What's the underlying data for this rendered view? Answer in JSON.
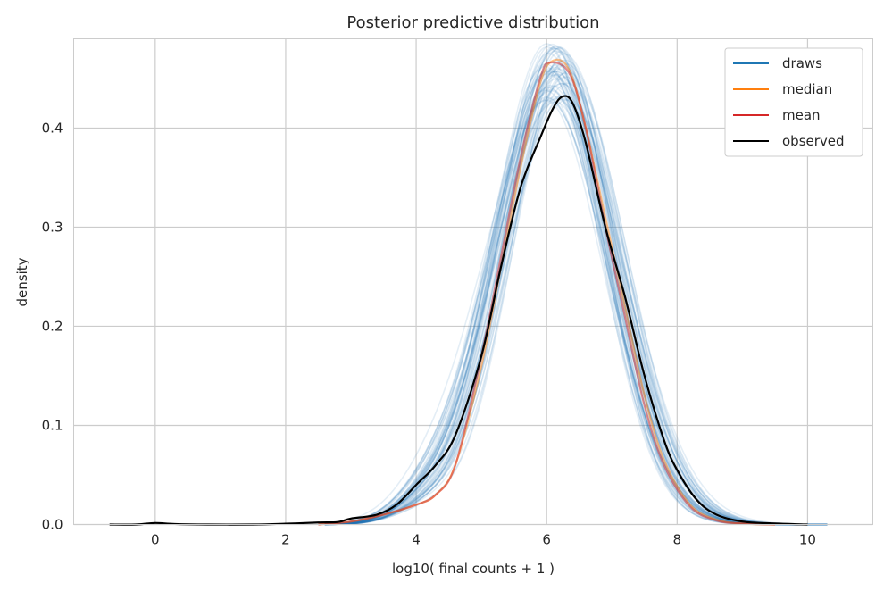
{
  "chart_data": {
    "type": "line",
    "title": "Posterior predictive distribution",
    "xlabel": "log10( final counts + 1 )",
    "ylabel": "density",
    "xlim": [
      -1.25,
      11.0
    ],
    "ylim": [
      0,
      0.49
    ],
    "xticks": [
      0,
      2,
      4,
      6,
      8,
      10
    ],
    "yticks": [
      0.0,
      0.1,
      0.2,
      0.3,
      0.4
    ],
    "xtick_labels": [
      "0",
      "2",
      "4",
      "6",
      "8",
      "10"
    ],
    "ytick_labels": [
      "0.0",
      "0.1",
      "0.2",
      "0.3",
      "0.4"
    ],
    "grid": true,
    "legend_position": "top-right",
    "legend": [
      "draws",
      "median",
      "mean",
      "observed"
    ],
    "colors": {
      "draws": "#1f77b4",
      "median": "#ff7f0e",
      "mean": "#d62728",
      "observed": "#000000",
      "grid": "#cccccc"
    },
    "draws_count_visible": 60,
    "series": [
      {
        "name": "median",
        "x": [
          2.5,
          3.0,
          3.5,
          4.0,
          4.3,
          4.6,
          5.0,
          5.3,
          5.6,
          5.9,
          6.1,
          6.35,
          6.6,
          6.9,
          7.2,
          7.5,
          7.8,
          8.2,
          8.6,
          9.0,
          9.5
        ],
        "y": [
          0.0,
          0.003,
          0.01,
          0.02,
          0.03,
          0.06,
          0.16,
          0.26,
          0.36,
          0.445,
          0.468,
          0.458,
          0.4,
          0.31,
          0.22,
          0.13,
          0.065,
          0.02,
          0.005,
          0.001,
          0.0
        ]
      },
      {
        "name": "mean",
        "x": [
          2.5,
          3.0,
          3.5,
          4.0,
          4.3,
          4.6,
          5.0,
          5.3,
          5.6,
          5.9,
          6.05,
          6.35,
          6.6,
          6.9,
          7.2,
          7.5,
          7.8,
          8.2,
          8.6,
          9.0,
          9.5
        ],
        "y": [
          0.0,
          0.003,
          0.01,
          0.02,
          0.03,
          0.06,
          0.17,
          0.27,
          0.37,
          0.45,
          0.466,
          0.455,
          0.4,
          0.3,
          0.21,
          0.12,
          0.06,
          0.018,
          0.004,
          0.001,
          0.0
        ]
      },
      {
        "name": "observed",
        "x": [
          -0.7,
          -0.3,
          0.0,
          0.3,
          0.8,
          1.5,
          2.0,
          2.5,
          2.8,
          3.0,
          3.4,
          3.7,
          4.0,
          4.3,
          4.6,
          5.0,
          5.3,
          5.6,
          5.9,
          6.1,
          6.25,
          6.4,
          6.6,
          6.9,
          7.2,
          7.5,
          7.8,
          8.0,
          8.3,
          8.6,
          9.0,
          9.5,
          10.0
        ],
        "y": [
          0.0,
          0.0,
          0.0015,
          0.0005,
          0.0,
          0.0,
          0.0008,
          0.002,
          0.0025,
          0.006,
          0.01,
          0.02,
          0.04,
          0.06,
          0.09,
          0.17,
          0.26,
          0.34,
          0.39,
          0.42,
          0.432,
          0.425,
          0.385,
          0.3,
          0.23,
          0.15,
          0.085,
          0.055,
          0.025,
          0.01,
          0.003,
          0.001,
          0.0
        ]
      }
    ]
  }
}
